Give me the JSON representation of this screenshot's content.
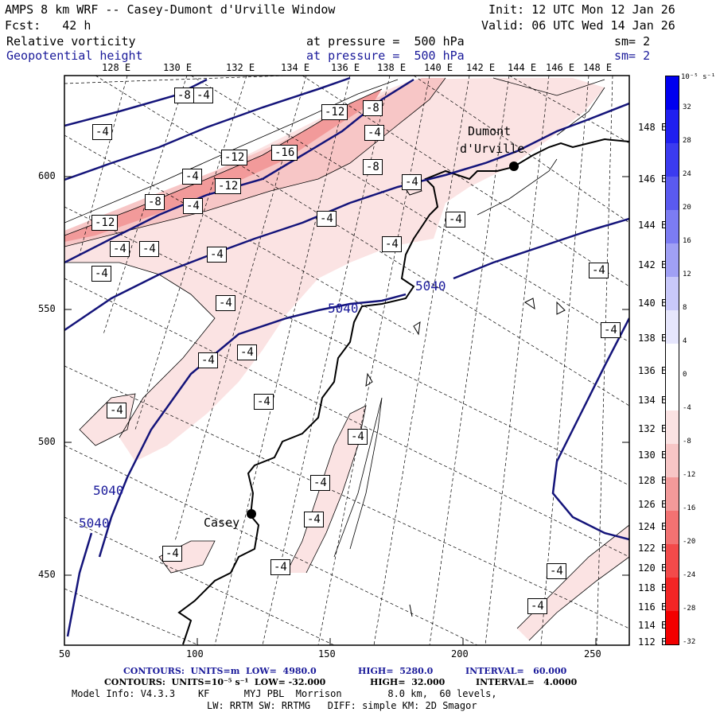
{
  "header": {
    "title": "AMPS 8 km WRF -- Casey-Dumont d'Urville Window",
    "init": "Init: 12 UTC Mon 12 Jan 26",
    "fcst": "Fcst:   42 h",
    "valid": "Valid: 06 UTC Wed 14 Jan 26",
    "field1": "Relative vorticity",
    "field1_level": "at pressure =  500 hPa",
    "field1_sm": "sm= 2",
    "field2": "Geopotential height",
    "field2_level": "at pressure =  500 hPa",
    "field2_sm": "sm= 2"
  },
  "colors": {
    "height_contour": "#14147a",
    "vort_neg_light": "#fbe3e3",
    "vort_neg_mid": "#f7c6c6",
    "vort_neg_strong": "#f29a9a",
    "coast": "#000000"
  },
  "top_lon_labels": [
    "128 E",
    "130 E",
    "132 E",
    "134 E",
    "136 E",
    "138 E",
    "140 E",
    "142 E",
    "144 E",
    "146 E",
    "148 E"
  ],
  "right_lon_labels": [
    "148 E",
    "146 E",
    "144 E",
    "142 E",
    "140 E",
    "138 E",
    "136 E",
    "134 E",
    "132 E",
    "130 E",
    "128 E",
    "126 E",
    "124 E",
    "122 E",
    "120 E",
    "118 E",
    "116 E",
    "114 E",
    "112 E"
  ],
  "left_axis_labels": [
    "600",
    "550",
    "500",
    "450"
  ],
  "bottom_axis_labels": [
    "50",
    "100",
    "150",
    "200",
    "250"
  ],
  "stations": [
    {
      "name": "Dumont",
      "name2": "d'Urville"
    },
    {
      "name": "Casey",
      "name2": ""
    }
  ],
  "height_labels": [
    "5040",
    "5040",
    "5040",
    "5040"
  ],
  "vort_labels": [
    "-8",
    "-4",
    "-4",
    "-12",
    "-12",
    "-8",
    "-4",
    "-4",
    "-16",
    "-8",
    "-12",
    "-8",
    "-4",
    "-4",
    "-12",
    "-4",
    "-4",
    "-4",
    "-4",
    "-4",
    "-4",
    "-4",
    "-4",
    "-4",
    "-4",
    "-4",
    "-4",
    "-4",
    "-4",
    "-4",
    "-4",
    "-4",
    "-4",
    "-4",
    "-4",
    "-4"
  ],
  "colorbar": {
    "unit": "10⁻⁵ s⁻¹",
    "ticks": [
      "32",
      "28",
      "24",
      "20",
      "16",
      "12",
      "8",
      "4",
      "0",
      "-4",
      "-8",
      "-12",
      "-16",
      "-20",
      "-24",
      "-28",
      "-32"
    ],
    "colors": [
      "#0000f0",
      "#1f1ff0",
      "#3b3bf0",
      "#5a5af0",
      "#7c7cf2",
      "#a0a0f5",
      "#c8c8fa",
      "#e6e6fc",
      "#ffffff",
      "#ffffff",
      "#fbe3e3",
      "#f7c6c6",
      "#f29a9a",
      "#f27272",
      "#f24a4a",
      "#f22525",
      "#f20000"
    ]
  },
  "footer": {
    "line1_a": "CONTOURS:  UNITS=m  LOW=  4980.0",
    "line1_b": "HIGH=  5280.0",
    "line1_c": "INTERVAL=   60.000",
    "line2_a": "CONTOURS:  UNITS=10⁻⁵ s⁻¹  LOW= -32.000",
    "line2_b": "HIGH=  32.000",
    "line2_c": "INTERVAL=   4.0000",
    "model_info": "Model Info: V4.3.3    KF      MYJ PBL  Morrison        8.0 km,  60 levels,",
    "model_info2": "LW: RRTM SW: RRTMG   DIFF: simple KM: 2D Smagor"
  }
}
